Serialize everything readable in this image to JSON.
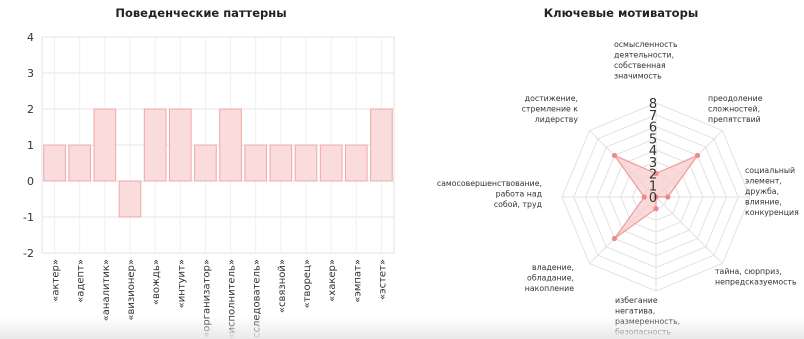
{
  "chart_data": [
    {
      "type": "bar",
      "title": "Поведенческие паттерны",
      "categories": [
        "«актер»",
        "«адепт»",
        "«аналитик»",
        "«визионер»",
        "«вождь»",
        "«интуит»",
        "«организатор»",
        "«исполнитель»",
        "«исследователь»",
        "«связной»",
        "«творец»",
        "«хакер»",
        "«эмпат»",
        "«эстет»"
      ],
      "values": [
        1,
        1,
        2,
        -1,
        2,
        2,
        1,
        2,
        1,
        1,
        1,
        1,
        1,
        2
      ],
      "yticks": [
        4,
        3,
        2,
        1,
        0,
        -1,
        -2
      ],
      "ylim": [
        -2,
        4
      ],
      "grid": true,
      "colors": {
        "fill": "#fadcdc",
        "stroke": "#f0a8a8"
      }
    },
    {
      "type": "radar",
      "title": "Ключевые мотиваторы",
      "axes": [
        [
          "осмысленность",
          "деятельности,",
          "собственная",
          "значимость"
        ],
        [
          "преодоление",
          "сложностей,",
          "препятствий"
        ],
        [
          "социальный",
          "элемент,",
          "дружба,",
          "влияние,",
          "конкуренция"
        ],
        [
          "тайна, сюрприз,",
          "непредсказуемость"
        ],
        [
          "избегание",
          "негатива,",
          "размеренность,",
          "безопасность"
        ],
        [
          "владение,",
          "обладание,",
          "накопление"
        ],
        [
          "самосовершенствование,",
          "работа над",
          "собой, труд"
        ],
        [
          "достижение,",
          "стремление к",
          "лидерству"
        ]
      ],
      "values": [
        2,
        5,
        1,
        0,
        1,
        5,
        1,
        5
      ],
      "ticks": [
        0,
        1,
        2,
        3,
        4,
        5,
        6,
        7,
        8
      ],
      "rmax": 8,
      "grid": true,
      "colors": {
        "fill": "#f7cccc",
        "stroke": "#ee9a9a",
        "point": "#f08888"
      }
    }
  ]
}
